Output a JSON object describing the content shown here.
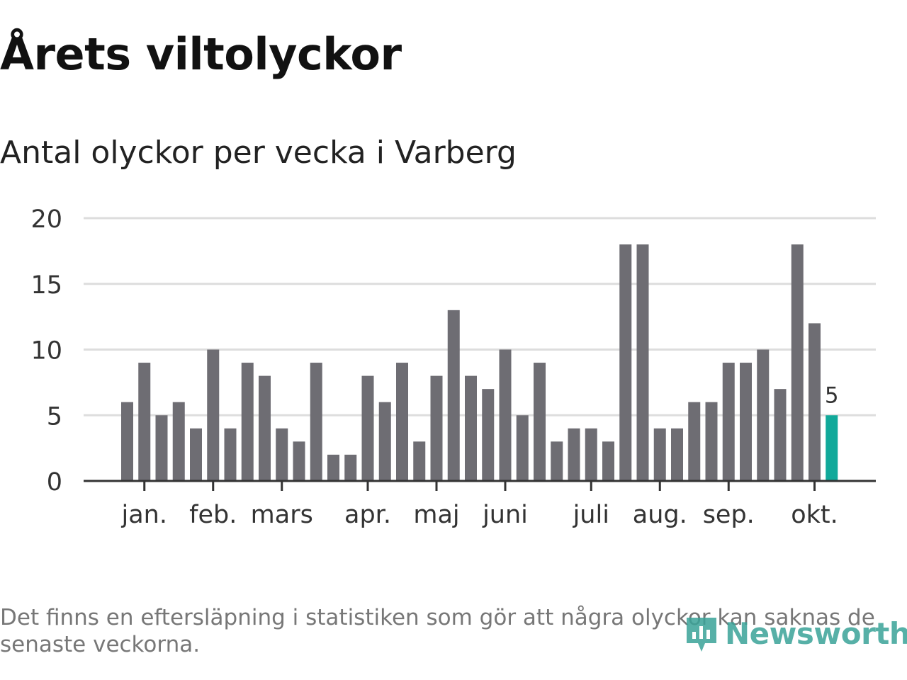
{
  "header": {
    "title": "Årets viltolyckor",
    "subtitle": "Antal olyckor per vecka i Varberg"
  },
  "chart_data": {
    "type": "bar",
    "ylim": [
      0,
      20
    ],
    "yticks": [
      0,
      5,
      10,
      15,
      20
    ],
    "grid": true,
    "week_values": [
      6,
      9,
      5,
      6,
      4,
      10,
      4,
      9,
      8,
      4,
      3,
      9,
      2,
      2,
      8,
      6,
      9,
      3,
      8,
      13,
      8,
      7,
      10,
      5,
      9,
      3,
      4,
      4,
      3,
      18,
      18,
      4,
      4,
      6,
      6,
      9,
      9,
      10,
      7,
      18,
      12,
      5
    ],
    "month_ticks": [
      {
        "label": "jan.",
        "week": 1
      },
      {
        "label": "feb.",
        "week": 5
      },
      {
        "label": "mars",
        "week": 9
      },
      {
        "label": "apr.",
        "week": 14
      },
      {
        "label": "maj",
        "week": 18
      },
      {
        "label": "juni",
        "week": 22
      },
      {
        "label": "juli",
        "week": 27
      },
      {
        "label": "aug.",
        "week": 31
      },
      {
        "label": "sep.",
        "week": 35
      },
      {
        "label": "okt.",
        "week": 40
      }
    ],
    "highlight_label": "5",
    "colors": {
      "bar": "#6e6d73",
      "highlight": "#11a99a",
      "grid": "#dddddd",
      "axis": "#333333"
    }
  },
  "footer": {
    "note": "Det finns en eftersläpning i statistiken som gör att några olyckor kan saknas de senaste veckorna.",
    "logo_text": "Newsworthy"
  }
}
